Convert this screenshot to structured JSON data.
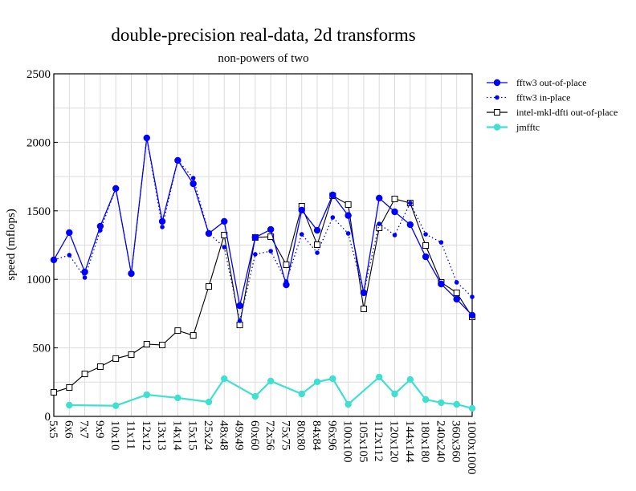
{
  "chart_data": {
    "type": "line",
    "title": "double-precision real-data, 2d transforms",
    "subtitle": "non-powers of two",
    "xlabel": "",
    "ylabel": "speed (mflops)",
    "ylim": [
      0,
      2500
    ],
    "yticks": [
      0,
      500,
      1000,
      1500,
      2000,
      2500
    ],
    "grid": true,
    "legend_position": "right",
    "categories": [
      "5x5",
      "6x6",
      "7x7",
      "9x9",
      "10x10",
      "11x11",
      "12x12",
      "13x13",
      "14x14",
      "15x15",
      "25x24",
      "48x48",
      "49x49",
      "60x60",
      "72x56",
      "75x75",
      "80x80",
      "84x84",
      "96x96",
      "100x100",
      "105x105",
      "112x112",
      "120x120",
      "144x144",
      "180x180",
      "240x240",
      "360x360",
      "1000x1000"
    ],
    "series": [
      {
        "name": "fftw3 out-of-place",
        "color": "#0000ff",
        "style": "solid",
        "marker": "circle",
        "values": [
          1142,
          1341,
          1054,
          1388,
          1663,
          1042,
          2032,
          1423,
          1868,
          1698,
          1335,
          1423,
          808,
          1306,
          1364,
          960,
          1505,
          1358,
          1616,
          1466,
          902,
          1593,
          1493,
          1399,
          1165,
          966,
          855,
          738
        ]
      },
      {
        "name": "fftw3 in-place",
        "color": "#0000ff",
        "style": "dotted",
        "marker": "small-circle",
        "values": [
          1142,
          1177,
          1013,
          1358,
          1663,
          1042,
          2032,
          1382,
          1868,
          1739,
          1335,
          1235,
          697,
          1183,
          1206,
          984,
          1329,
          1194,
          1452,
          1335,
          907,
          1405,
          1323,
          1557,
          1329,
          1270,
          978,
          872
        ]
      },
      {
        "name": "intel-mkl-dfti out-of-place",
        "color": "#000000",
        "style": "solid",
        "marker": "square",
        "values": [
          176,
          211,
          310,
          363,
          422,
          451,
          527,
          521,
          626,
          591,
          948,
          1323,
          667,
          1306,
          1311,
          1107,
          1534,
          1253,
          1610,
          1546,
          785,
          1376,
          1587,
          1557,
          1247,
          978,
          902,
          726
        ]
      },
      {
        "name": "jmfftc",
        "color": "#40e0d0",
        "style": "solid",
        "marker": "circle",
        "values": [
          null,
          82,
          null,
          null,
          78,
          null,
          158,
          null,
          135,
          null,
          105,
          275,
          null,
          146,
          258,
          null,
          164,
          252,
          275,
          88,
          null,
          287,
          164,
          269,
          123,
          100,
          88,
          59
        ]
      }
    ]
  }
}
